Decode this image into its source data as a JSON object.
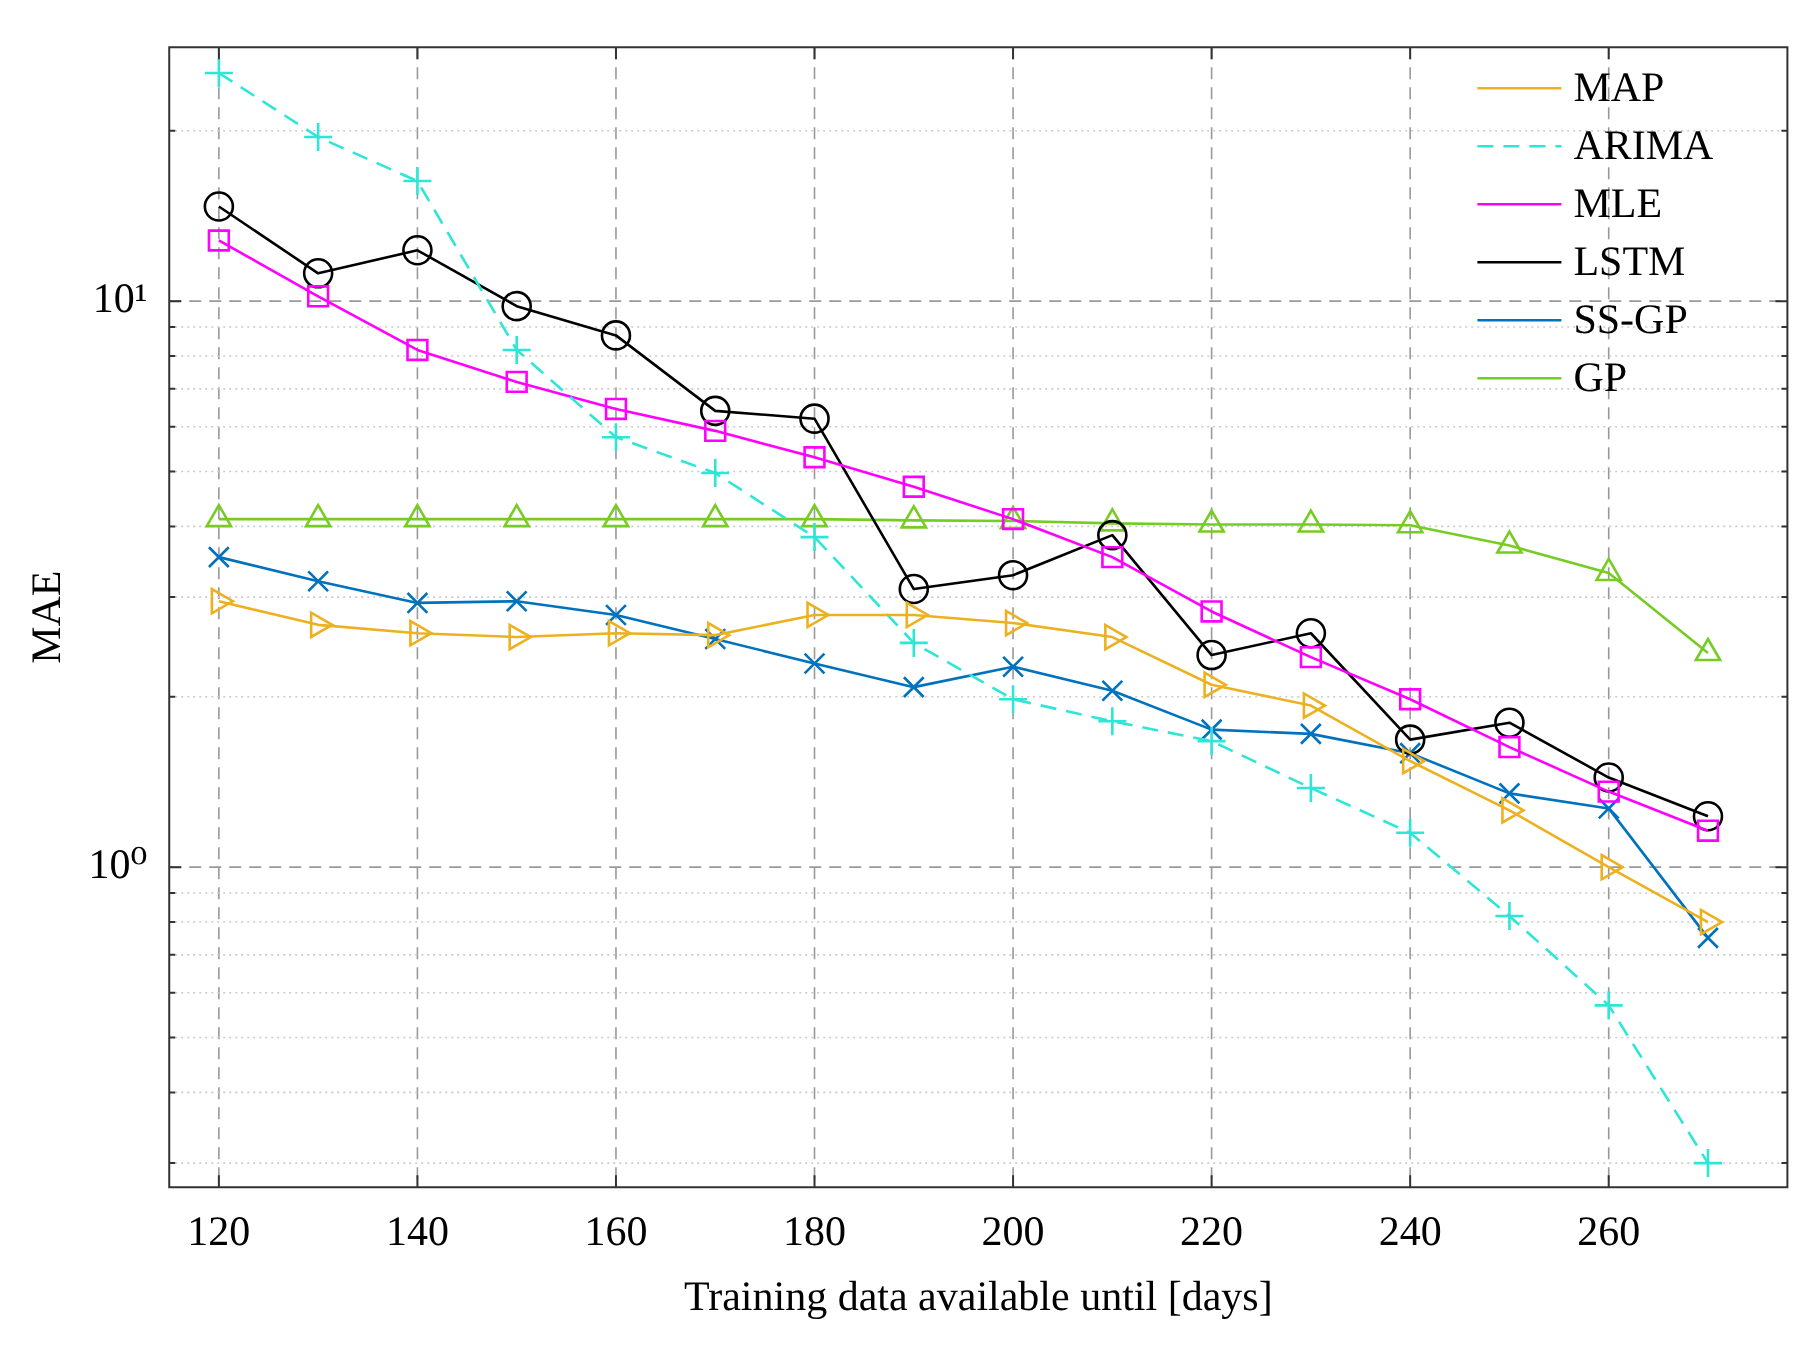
{
  "chart_data": {
    "type": "line",
    "xlabel": "Training data available until [days]",
    "ylabel": "MAE",
    "log": "y",
    "grid": true,
    "legend": "top right",
    "x": [
      120,
      130,
      140,
      150,
      160,
      170,
      180,
      190,
      200,
      210,
      220,
      230,
      240,
      250,
      260,
      270
    ],
    "xlim": [
      115,
      278
    ],
    "xticks": [
      120,
      140,
      160,
      180,
      200,
      220,
      240,
      260
    ],
    "ylim": [
      0.272,
      28.1
    ],
    "yticks": [
      {
        "value": 0.3,
        "label": null
      },
      {
        "value": 0.4,
        "label": null
      },
      {
        "value": 0.5,
        "label": null
      },
      {
        "value": 0.6,
        "label": null
      },
      {
        "value": 0.7,
        "label": null
      },
      {
        "value": 0.8,
        "label": null
      },
      {
        "value": 0.9,
        "label": null
      },
      {
        "value": 1,
        "label": "10⁰"
      },
      {
        "value": 2,
        "label": null
      },
      {
        "value": 3,
        "label": null
      },
      {
        "value": 4,
        "label": null
      },
      {
        "value": 5,
        "label": null
      },
      {
        "value": 6,
        "label": null
      },
      {
        "value": 7,
        "label": null
      },
      {
        "value": 8,
        "label": null
      },
      {
        "value": 9,
        "label": null
      },
      {
        "value": 10,
        "label": "10¹"
      },
      {
        "value": 20,
        "label": null
      }
    ],
    "series": [
      {
        "name": "MAP",
        "color": "#edb120",
        "marker": "triangle-right",
        "line_style": "solid",
        "values": [
          2.95,
          2.68,
          2.59,
          2.55,
          2.59,
          2.57,
          2.79,
          2.79,
          2.7,
          2.55,
          2.1,
          1.93,
          1.54,
          1.26,
          1.0,
          0.8
        ]
      },
      {
        "name": "ARIMA",
        "color": "#2ee6d6",
        "marker": "cross",
        "line_style": "dashed",
        "values": [
          25.3,
          19.5,
          16.3,
          8.2,
          5.75,
          4.97,
          3.83,
          2.49,
          1.98,
          1.81,
          1.67,
          1.38,
          1.15,
          0.82,
          0.57,
          0.3
        ]
      },
      {
        "name": "MLE",
        "color": "#ff00ff",
        "marker": "square",
        "line_style": "solid",
        "values": [
          12.8,
          10.2,
          8.2,
          7.2,
          6.45,
          5.9,
          5.3,
          4.7,
          4.12,
          3.53,
          2.83,
          2.35,
          1.98,
          1.63,
          1.36,
          1.16
        ]
      },
      {
        "name": "LSTM",
        "color": "#000000",
        "marker": "circle",
        "line_style": "solid",
        "values": [
          14.7,
          11.2,
          12.3,
          9.8,
          8.7,
          6.4,
          6.2,
          3.1,
          3.28,
          3.86,
          2.37,
          2.59,
          1.68,
          1.8,
          1.44,
          1.23
        ]
      },
      {
        "name": "SS-GP",
        "color": "#0072bd",
        "marker": "x",
        "line_style": "solid",
        "values": [
          3.53,
          3.2,
          2.93,
          2.95,
          2.79,
          2.53,
          2.29,
          2.08,
          2.26,
          2.05,
          1.75,
          1.72,
          1.59,
          1.35,
          1.27,
          0.75
        ]
      },
      {
        "name": "GP",
        "color": "#77cc22",
        "marker": "triangle",
        "line_style": "solid",
        "values": [
          4.12,
          4.12,
          4.12,
          4.12,
          4.12,
          4.12,
          4.12,
          4.1,
          4.09,
          4.05,
          4.03,
          4.03,
          4.02,
          3.7,
          3.31,
          2.39
        ]
      }
    ]
  }
}
